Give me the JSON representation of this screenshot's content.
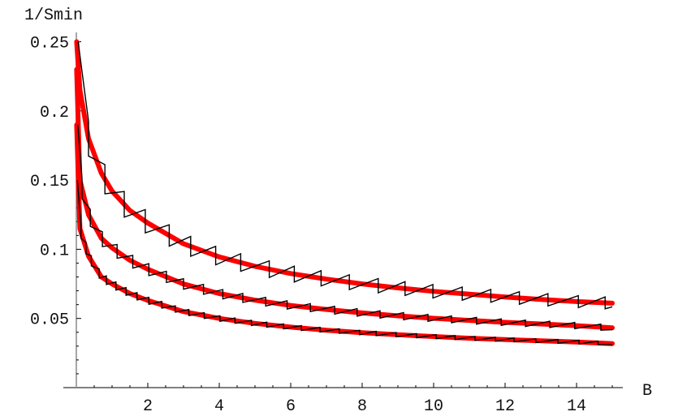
{
  "chart_data": {
    "type": "line",
    "title": "",
    "xlabel": "B",
    "ylabel": "1/Smin",
    "xlim": [
      0,
      15
    ],
    "ylim": [
      0,
      0.25
    ],
    "grid": false,
    "x_ticks": [
      2,
      4,
      6,
      8,
      10,
      12,
      14
    ],
    "x_tick_labels": [
      "2",
      "4",
      "6",
      "8",
      "10",
      "12",
      "14"
    ],
    "y_ticks": [
      0.05,
      0.1,
      0.15,
      0.2,
      0.25
    ],
    "y_tick_labels": [
      "0.05",
      "0.1",
      "0.15",
      "0.2",
      "0.25"
    ],
    "colors": {
      "smooth": "#ff0000",
      "sawtooth": "#000000"
    },
    "smooth_curves": [
      {
        "points": [
          [
            0.01,
            0.25
          ],
          [
            0.1,
            0.215
          ],
          [
            0.34,
            0.18
          ],
          [
            0.7,
            0.155
          ],
          [
            1,
            0.142
          ],
          [
            1.5,
            0.128
          ],
          [
            2,
            0.119
          ],
          [
            3,
            0.104
          ],
          [
            4,
            0.0945
          ],
          [
            5,
            0.0877
          ],
          [
            6,
            0.0825
          ],
          [
            7,
            0.0784
          ],
          [
            8,
            0.075
          ],
          [
            9,
            0.0721
          ],
          [
            10,
            0.0696
          ],
          [
            11,
            0.0675
          ],
          [
            12,
            0.0655
          ],
          [
            13,
            0.0638
          ],
          [
            14,
            0.0622
          ],
          [
            15,
            0.061
          ]
        ]
      },
      {
        "points": [
          [
            0.01,
            0.23
          ],
          [
            0.1,
            0.15
          ],
          [
            0.34,
            0.125
          ],
          [
            0.7,
            0.108
          ],
          [
            1,
            0.101
          ],
          [
            1.5,
            0.092
          ],
          [
            2,
            0.0856
          ],
          [
            3,
            0.0749
          ],
          [
            4,
            0.068
          ],
          [
            5,
            0.0632
          ],
          [
            6,
            0.0594
          ],
          [
            7,
            0.0565
          ],
          [
            8,
            0.054
          ],
          [
            9,
            0.0519
          ],
          [
            10,
            0.0501
          ],
          [
            11,
            0.0486
          ],
          [
            12,
            0.0472
          ],
          [
            13,
            0.046
          ],
          [
            14,
            0.0448
          ],
          [
            15,
            0.0432
          ]
        ]
      },
      {
        "points": [
          [
            0.01,
            0.19
          ],
          [
            0.1,
            0.115
          ],
          [
            0.34,
            0.095
          ],
          [
            0.7,
            0.08
          ],
          [
            1,
            0.075
          ],
          [
            1.5,
            0.068
          ],
          [
            2,
            0.063
          ],
          [
            3,
            0.055
          ],
          [
            4,
            0.05
          ],
          [
            5,
            0.0464
          ],
          [
            6,
            0.0437
          ],
          [
            7,
            0.0415
          ],
          [
            8,
            0.0397
          ],
          [
            9,
            0.0382
          ],
          [
            10,
            0.0369
          ],
          [
            11,
            0.0357
          ],
          [
            12,
            0.0347
          ],
          [
            13,
            0.0338
          ],
          [
            14,
            0.033
          ],
          [
            15,
            0.0318
          ]
        ]
      }
    ],
    "sawtooth_curves": [
      {
        "start": [
          0.05,
          0.25
        ],
        "amplitude": 0.07,
        "drops": [
          0.34,
          0.8,
          1.34,
          1.93,
          2.6,
          3.2,
          3.9,
          4.6,
          5.4,
          6.1,
          6.85,
          7.64,
          8.45,
          9.2,
          9.98,
          10.8,
          11.6,
          12.4,
          13.2,
          14.05,
          14.8
        ],
        "end": 15
      },
      {
        "start": [
          0.04,
          0.19
        ],
        "amplitude": 0.05,
        "drops": [
          0.16,
          0.39,
          0.73,
          1.14,
          1.58,
          2.03,
          2.52,
          3.0,
          3.56,
          4.1,
          4.66,
          5.3,
          5.9,
          6.55,
          7.23,
          7.86,
          8.5,
          9.16,
          9.84,
          10.5,
          11.2,
          11.89,
          12.57,
          13.25,
          13.95,
          14.68
        ],
        "end": 15
      },
      {
        "start": [
          0.03,
          0.15
        ],
        "amplitude": 0.04,
        "drops": [
          0.13,
          0.27,
          0.42,
          0.64,
          0.84,
          1.11,
          1.39,
          1.7,
          2.03,
          2.39,
          2.77,
          3.15,
          3.58,
          4.02,
          4.44,
          4.9,
          5.33,
          5.8,
          6.3,
          6.82,
          7.36,
          7.93,
          8.39,
          8.95,
          9.52,
          10.07,
          10.6,
          11.16,
          11.73,
          12.25,
          12.86,
          13.48,
          14.07,
          14.6
        ],
        "end": 15
      }
    ]
  }
}
